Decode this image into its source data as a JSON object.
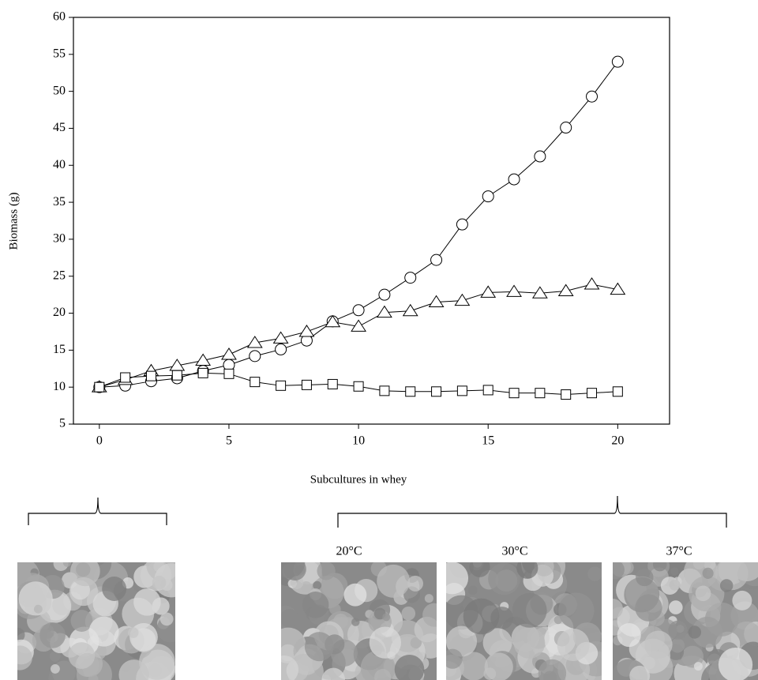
{
  "chart_data": {
    "type": "line",
    "x_label": "Subcultures in whey",
    "y_label": "Biomass (g)",
    "x": [
      0,
      1,
      2,
      3,
      4,
      5,
      6,
      7,
      8,
      9,
      10,
      11,
      12,
      13,
      14,
      15,
      16,
      17,
      18,
      19,
      20
    ],
    "series": [
      {
        "marker": "circle",
        "color": "#000000",
        "values": [
          10.0,
          10.2,
          10.8,
          11.2,
          12.2,
          13.0,
          14.2,
          15.1,
          16.3,
          18.9,
          20.4,
          22.5,
          24.8,
          27.2,
          32.0,
          35.8,
          38.1,
          41.2,
          45.1,
          49.3,
          54.0
        ]
      },
      {
        "marker": "triangle",
        "color": "#000000",
        "values": [
          10.0,
          11.0,
          12.2,
          12.9,
          13.6,
          14.4,
          16.0,
          16.6,
          17.5,
          18.8,
          18.2,
          20.1,
          20.3,
          21.5,
          21.7,
          22.8,
          22.9,
          22.7,
          23.0,
          23.9,
          23.2
        ]
      },
      {
        "marker": "square",
        "color": "#000000",
        "values": [
          10.0,
          11.3,
          11.5,
          11.6,
          11.9,
          11.8,
          10.7,
          10.2,
          10.3,
          10.4,
          10.1,
          9.5,
          9.4,
          9.4,
          9.5,
          9.6,
          9.2,
          9.2,
          9.0,
          9.2,
          9.4
        ]
      }
    ],
    "xlim": [
      -1,
      22
    ],
    "xticks": [
      0,
      5,
      10,
      15,
      20
    ],
    "ylim": [
      5,
      60
    ],
    "yticks": [
      5,
      10,
      15,
      20,
      25,
      30,
      35,
      40,
      45,
      50,
      55,
      60
    ]
  },
  "panel_labels": [
    "20°C",
    "30°C",
    "37°C"
  ]
}
